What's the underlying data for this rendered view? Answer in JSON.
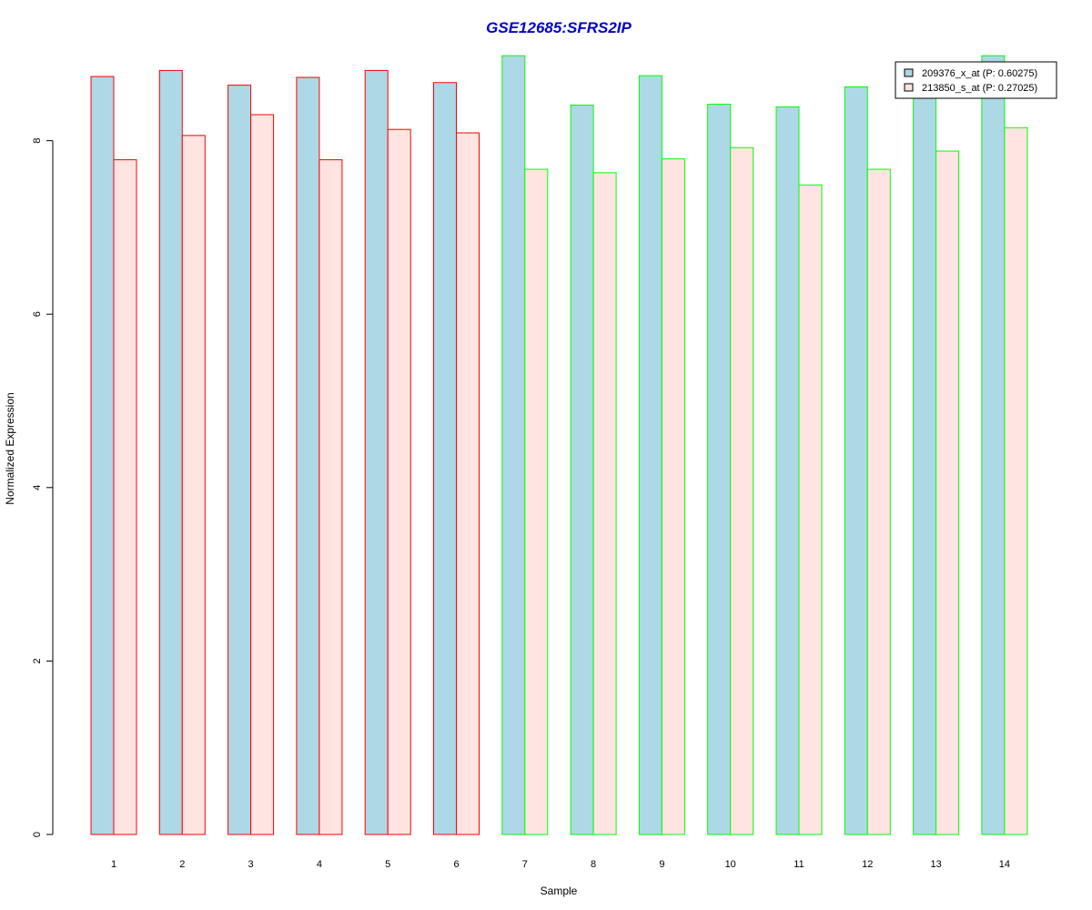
{
  "chart_data": {
    "type": "bar",
    "title": "GSE12685:SFRS2IP",
    "xlabel": "Sample",
    "ylabel": "Normalized Expression",
    "categories": [
      "1",
      "2",
      "3",
      "4",
      "5",
      "6",
      "7",
      "8",
      "9",
      "10",
      "11",
      "12",
      "13",
      "14"
    ],
    "series": [
      {
        "name": "209376_x_at (P: 0.60275)",
        "fill": "#add8e6",
        "values": [
          8.74,
          8.81,
          8.64,
          8.73,
          8.81,
          8.67,
          8.98,
          8.41,
          8.75,
          8.42,
          8.39,
          8.62,
          8.52,
          8.98
        ]
      },
      {
        "name": "213850_s_at (P: 0.27025)",
        "fill": "#ffe4e1",
        "values": [
          7.78,
          8.06,
          8.3,
          7.78,
          8.13,
          8.09,
          7.67,
          7.63,
          7.79,
          7.92,
          7.49,
          7.67,
          7.88,
          8.15
        ]
      }
    ],
    "group_border_colors": [
      "#ff0000",
      "#ff0000",
      "#ff0000",
      "#ff0000",
      "#ff0000",
      "#ff0000",
      "#00ff00",
      "#00ff00",
      "#00ff00",
      "#00ff00",
      "#00ff00",
      "#00ff00",
      "#00ff00",
      "#00ff00"
    ],
    "yticks": [
      0,
      2,
      4,
      6,
      8
    ],
    "ylim": [
      0,
      9.0
    ],
    "title_color": "#0000cd",
    "grid": false,
    "legend_position": "top-right"
  }
}
